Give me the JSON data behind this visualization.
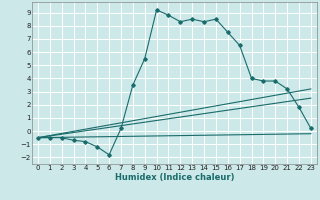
{
  "xlabel": "Humidex (Indice chaleur)",
  "xlim": [
    -0.5,
    23.5
  ],
  "ylim": [
    -2.5,
    9.8
  ],
  "yticks": [
    -2,
    -1,
    0,
    1,
    2,
    3,
    4,
    5,
    6,
    7,
    8,
    9
  ],
  "xticks": [
    0,
    1,
    2,
    3,
    4,
    5,
    6,
    7,
    8,
    9,
    10,
    11,
    12,
    13,
    14,
    15,
    16,
    17,
    18,
    19,
    20,
    21,
    22,
    23
  ],
  "background_color": "#cce8e8",
  "grid_color": "#ffffff",
  "line_color": "#1a6b6b",
  "main_x": [
    0,
    1,
    2,
    3,
    4,
    5,
    6,
    7,
    8,
    9,
    10,
    11,
    12,
    13,
    14,
    15,
    16,
    17,
    18,
    19,
    20,
    21,
    22,
    23
  ],
  "main_y": [
    -0.5,
    -0.5,
    -0.5,
    -0.7,
    -0.8,
    -1.2,
    -1.8,
    0.2,
    3.5,
    5.5,
    9.2,
    8.8,
    8.3,
    8.5,
    8.3,
    8.5,
    7.5,
    6.5,
    4.0,
    3.8,
    3.8,
    3.2,
    1.8,
    0.2
  ],
  "line2_x": [
    0,
    23
  ],
  "line2_y": [
    -0.5,
    3.2
  ],
  "line3_x": [
    0,
    23
  ],
  "line3_y": [
    -0.5,
    2.5
  ],
  "line4_x": [
    0,
    23
  ],
  "line4_y": [
    -0.5,
    -0.2
  ],
  "marker": "D",
  "markersize": 1.8,
  "linewidth": 0.8,
  "tick_fontsize": 5.0,
  "xlabel_fontsize": 6.0
}
